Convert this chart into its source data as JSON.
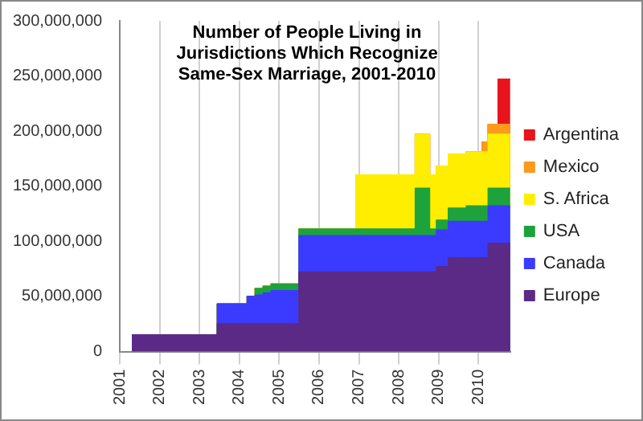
{
  "chart_data": {
    "type": "area",
    "stacked": true,
    "title": "Number of People Living in Jurisdictions Which Recognize Same-Sex Marriage, 2001-2010",
    "x": [
      2001.3,
      2003.45,
      2003.45,
      2004.2,
      2004.2,
      2004.4,
      2004.4,
      2004.6,
      2004.6,
      2004.8,
      2004.8,
      2005.5,
      2005.5,
      2006.93,
      2006.93,
      2008.42,
      2008.42,
      2008.77,
      2008.77,
      2008.95,
      2008.95,
      2009.25,
      2009.25,
      2009.7,
      2009.7,
      2010.1,
      2010.1,
      2010.25,
      2010.25,
      2010.5,
      2010.5,
      2010.8
    ],
    "series": [
      {
        "name": "Europe",
        "color": "#5b2a86",
        "values": [
          15000000,
          15000000,
          25000000,
          25000000,
          25000000,
          25000000,
          25000000,
          25000000,
          25000000,
          25000000,
          25000000,
          25000000,
          72000000,
          72000000,
          72000000,
          72000000,
          72000000,
          72000000,
          72000000,
          72000000,
          77000000,
          77000000,
          85000000,
          85000000,
          85000000,
          85000000,
          85000000,
          85000000,
          98000000,
          98000000,
          98000000,
          98000000
        ]
      },
      {
        "name": "Canada",
        "color": "#3b3bff",
        "values": [
          0,
          0,
          18000000,
          18000000,
          25000000,
          25000000,
          26000000,
          26000000,
          28000000,
          28000000,
          30000000,
          30000000,
          33000000,
          33000000,
          33000000,
          33000000,
          33000000,
          33000000,
          33000000,
          33000000,
          33000000,
          33000000,
          33000000,
          33000000,
          33000000,
          33000000,
          33000000,
          33000000,
          34000000,
          34000000,
          34000000,
          34000000
        ]
      },
      {
        "name": "USA",
        "color": "#1ea33c",
        "values": [
          0,
          0,
          0,
          0,
          0,
          0,
          6000000,
          6000000,
          6000000,
          6000000,
          6000000,
          6000000,
          6000000,
          6000000,
          6000000,
          6000000,
          43000000,
          43000000,
          6000000,
          6000000,
          9000000,
          9000000,
          12000000,
          12000000,
          14000000,
          14000000,
          14000000,
          14000000,
          16000000,
          16000000,
          16000000,
          16000000
        ]
      },
      {
        "name": "S. Africa",
        "color": "#ffee00",
        "values": [
          0,
          0,
          0,
          0,
          0,
          0,
          0,
          0,
          0,
          0,
          0,
          0,
          0,
          0,
          49000000,
          49000000,
          49000000,
          49000000,
          49000000,
          49000000,
          49000000,
          49000000,
          49000000,
          49000000,
          49000000,
          49000000,
          49000000,
          49000000,
          49000000,
          49000000,
          49000000,
          49000000
        ]
      },
      {
        "name": "Mexico",
        "color": "#ff9a1a",
        "values": [
          0,
          0,
          0,
          0,
          0,
          0,
          0,
          0,
          0,
          0,
          0,
          0,
          0,
          0,
          0,
          0,
          0,
          0,
          0,
          0,
          0,
          0,
          0,
          0,
          0,
          0,
          9000000,
          9000000,
          9000000,
          9000000,
          9000000,
          9000000
        ]
      },
      {
        "name": "Argentina",
        "color": "#e8141c",
        "values": [
          0,
          0,
          0,
          0,
          0,
          0,
          0,
          0,
          0,
          0,
          0,
          0,
          0,
          0,
          0,
          0,
          0,
          0,
          0,
          0,
          0,
          0,
          0,
          0,
          0,
          0,
          0,
          0,
          0,
          0,
          41000000,
          41000000
        ]
      }
    ],
    "xlim": [
      2001,
      2010.8
    ],
    "xticks": [
      2001,
      2002,
      2003,
      2004,
      2005,
      2006,
      2007,
      2008,
      2009,
      2010
    ],
    "ylim": [
      0,
      300000000
    ],
    "yticks": [
      0,
      {
        "value": 50000000,
        "label": "50,000,000"
      },
      {
        "value": 100000000,
        "label": "100,000,000"
      },
      {
        "value": 150000000,
        "label": "150,000,000"
      },
      {
        "value": 200000000,
        "label": "200,000,000"
      },
      {
        "value": 250000000,
        "label": "250,000,000"
      },
      {
        "value": 300000000,
        "label": "300,000,000"
      }
    ],
    "grid": "x",
    "legend": "right"
  }
}
